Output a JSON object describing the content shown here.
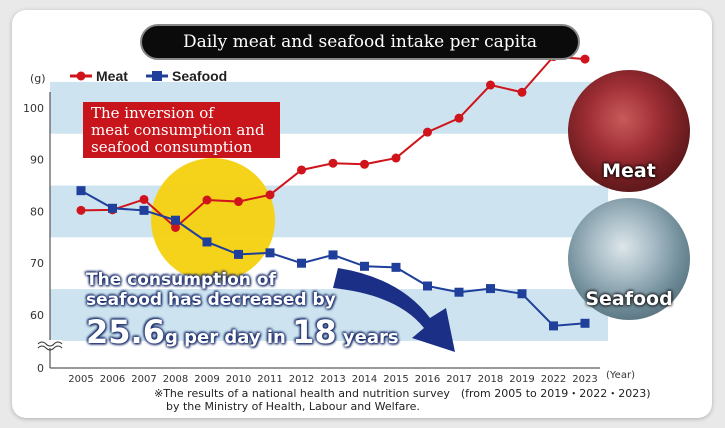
{
  "title": "Daily meat and seafood intake per capita",
  "callout": {
    "lines": [
      "The inversion of",
      "meat consumption and",
      "seafood consumption"
    ]
  },
  "decrease_note": {
    "line1": "The consumption of",
    "line2": "seafood has decreased by",
    "amount": "25.6",
    "unit_text": "g per day in ",
    "years": "18",
    "years_word": " years"
  },
  "photos": {
    "meat_label": "Meat",
    "seafood_label": "Seafood"
  },
  "footnote": {
    "line1": "※The results of a national health and nutrition survey　(from 2005 to 2019・2022・2023)",
    "line2": "by the Ministry of Health, Labour and Welfare."
  },
  "colors": {
    "meat": "#d0141c",
    "seafood": "#1f3f9a",
    "band": "#cde4f0",
    "highlight": "#f6d10f"
  },
  "chart_data": {
    "type": "line",
    "title": "Daily meat and seafood intake per capita",
    "x": [
      "2005",
      "2006",
      "2007",
      "2008",
      "2009",
      "2010",
      "2011",
      "2012",
      "2013",
      "2014",
      "2015",
      "2016",
      "2017",
      "2018",
      "2019",
      "2022",
      "2023"
    ],
    "xlabel": "(Year)",
    "ylabel": "(g)",
    "ylim": [
      60,
      105
    ],
    "yticks": [
      60,
      70,
      80,
      90,
      100
    ],
    "axis_break_label": "0",
    "series": [
      {
        "name": "Meat",
        "marker": "circle",
        "values": [
          80.2,
          80.3,
          82.3,
          76.9,
          82.2,
          81.9,
          83.2,
          88.0,
          89.3,
          89.1,
          90.3,
          95.3,
          98.0,
          104.4,
          103.0,
          109.9,
          109.4
        ]
      },
      {
        "name": "Seafood",
        "marker": "square",
        "values": [
          84.0,
          80.6,
          80.2,
          78.3,
          74.1,
          71.7,
          72.0,
          70.0,
          71.6,
          69.4,
          69.2,
          65.6,
          64.4,
          65.1,
          64.1,
          57.9,
          58.4
        ]
      }
    ],
    "legend_position": "top-left",
    "grid": "alternating horizontal bands"
  }
}
